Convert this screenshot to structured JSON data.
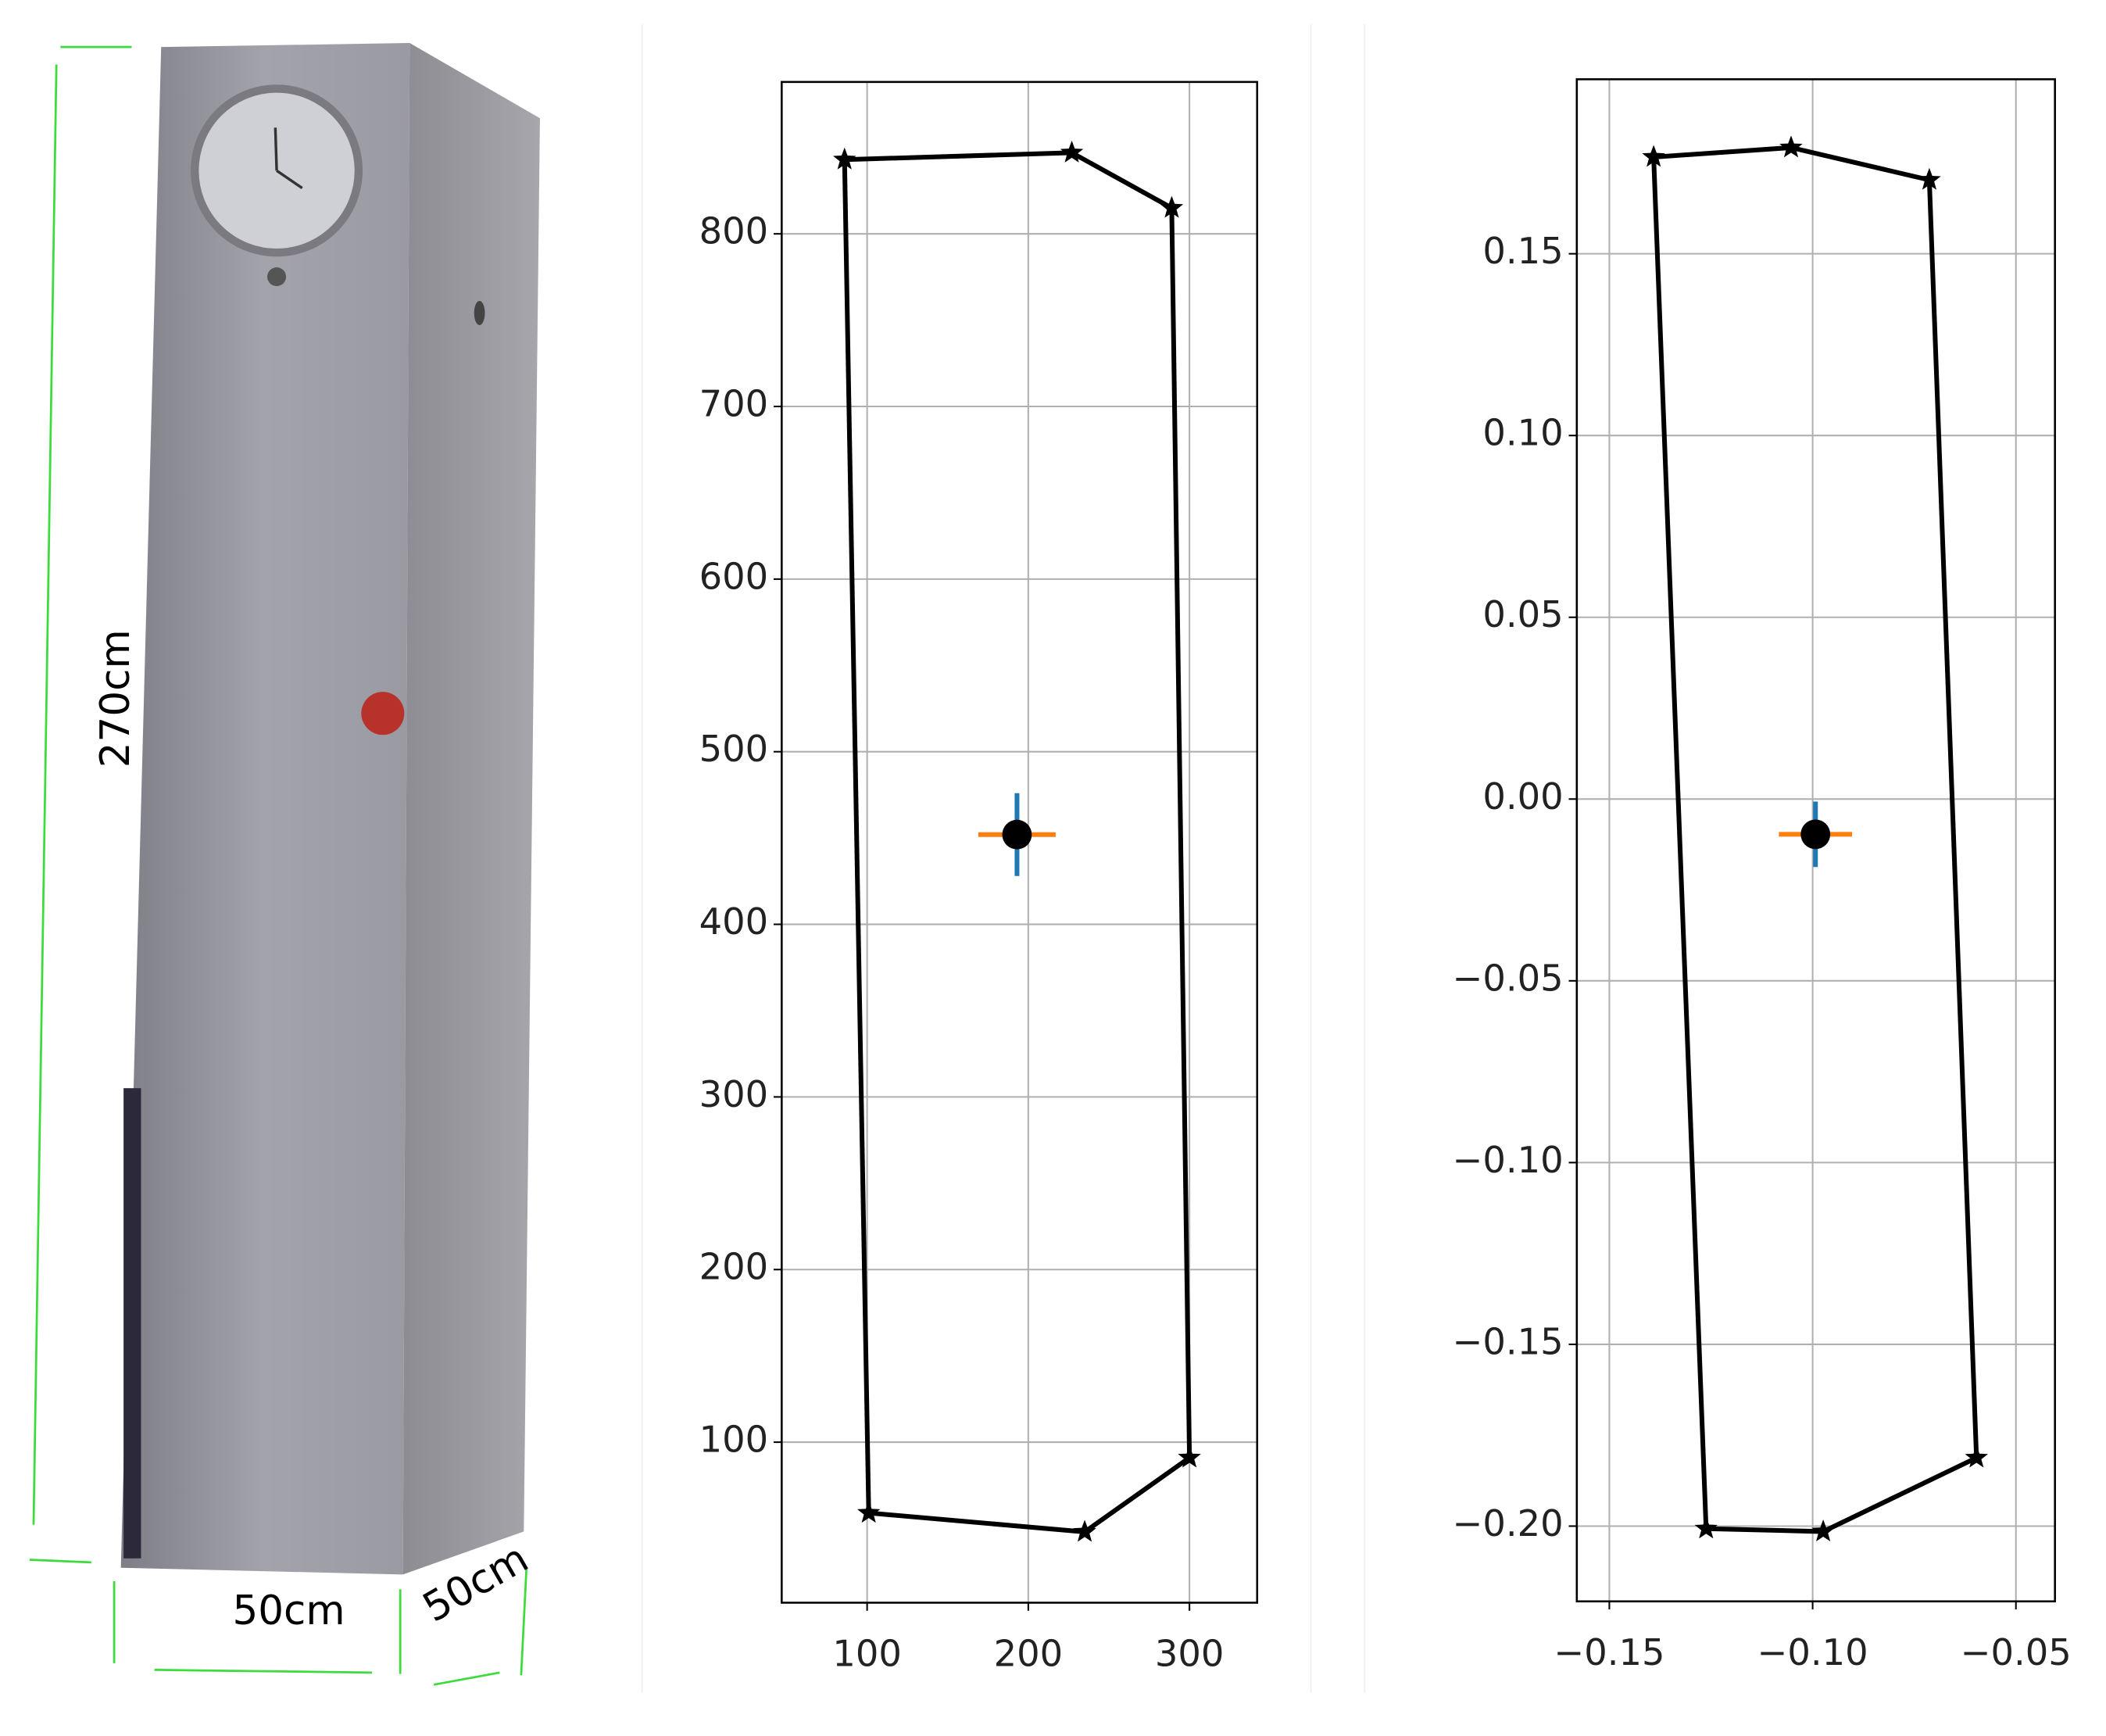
{
  "photo": {
    "labels": [
      "270cm",
      "50cm",
      "50cm"
    ]
  },
  "chart_data": [
    {
      "type": "line",
      "grid": true,
      "xlim": [
        47,
        342
      ],
      "ylim": [
        7,
        888
      ],
      "xticks": [
        100,
        200,
        300
      ],
      "yticks": [
        100,
        200,
        300,
        400,
        500,
        600,
        700,
        800
      ],
      "polygon": {
        "x": [
          86,
          227,
          289,
          300,
          235,
          101
        ],
        "y": [
          843,
          847,
          815,
          91,
          48,
          59
        ],
        "color": "#000000",
        "marker": "star",
        "closed": true
      },
      "center": {
        "x": 193,
        "y": 452,
        "xerr": 24,
        "yerr": 24,
        "color": "#000000",
        "xerr_color": "#ff7f0e",
        "yerr_color": "#1f77b4"
      }
    },
    {
      "type": "line",
      "grid": true,
      "xlim": [
        -0.158,
        -0.0404
      ],
      "ylim": [
        -0.2207,
        0.198
      ],
      "xticks": [
        {
          "value": -0.15,
          "label": "−0.15"
        },
        {
          "value": -0.1,
          "label": "−0.10"
        },
        {
          "value": -0.05,
          "label": "−0.05"
        }
      ],
      "yticks": [
        {
          "value": -0.2,
          "label": "−0.20"
        },
        {
          "value": -0.15,
          "label": "−0.15"
        },
        {
          "value": -0.1,
          "label": "−0.10"
        },
        {
          "value": -0.05,
          "label": "−0.05"
        },
        {
          "value": 0,
          "label": "0.00"
        },
        {
          "value": 0.05,
          "label": "0.05"
        },
        {
          "value": 0.1,
          "label": "0.10"
        },
        0.15
      ],
      "polygon": {
        "x": [
          -0.1391,
          -0.1053,
          -0.0713,
          -0.0597,
          -0.0974,
          -0.1262
        ],
        "y": [
          0.1766,
          0.1792,
          0.1703,
          -0.1812,
          -0.2015,
          -0.2007
        ],
        "color": "#000000",
        "marker": "star",
        "closed": true
      },
      "center": {
        "x": -0.0993,
        "y": -0.0097,
        "xerr": 0.009,
        "yerr": 0.009,
        "color": "#000000",
        "xerr_color": "#ff7f0e",
        "yerr_color": "#1f77b4"
      }
    }
  ]
}
